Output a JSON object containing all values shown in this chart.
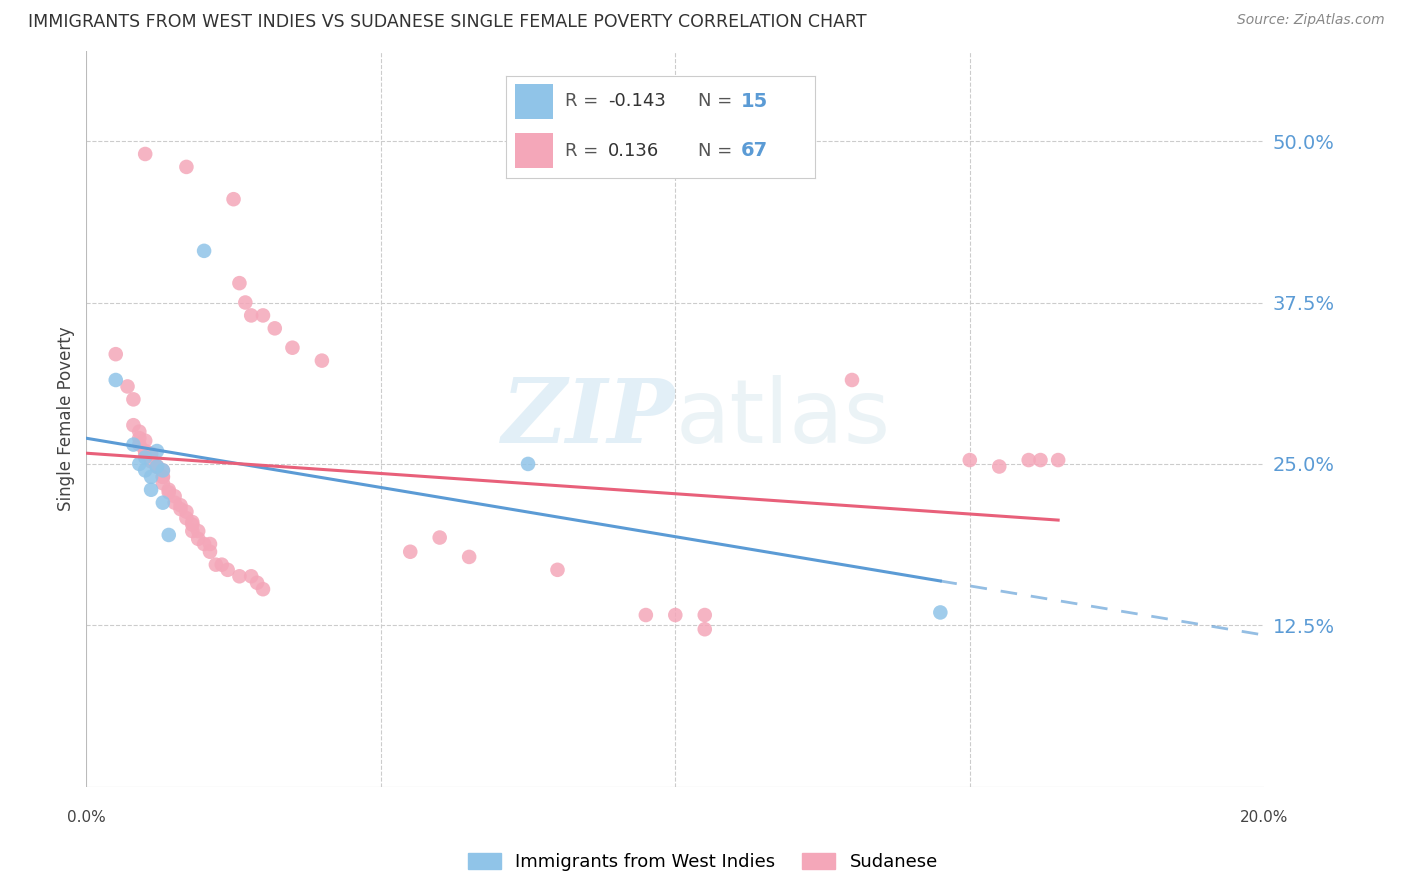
{
  "title": "IMMIGRANTS FROM WEST INDIES VS SUDANESE SINGLE FEMALE POVERTY CORRELATION CHART",
  "source": "Source: ZipAtlas.com",
  "ylabel": "Single Female Poverty",
  "ytick_labels": [
    "50.0%",
    "37.5%",
    "25.0%",
    "12.5%"
  ],
  "ytick_values": [
    0.5,
    0.375,
    0.25,
    0.125
  ],
  "xmin": 0.0,
  "xmax": 0.2,
  "ymin": 0.0,
  "ymax": 0.57,
  "legend": {
    "blue_R": "-0.143",
    "blue_N": "15",
    "pink_R": "0.136",
    "pink_N": "67"
  },
  "watermark_zip": "ZIP",
  "watermark_atlas": "atlas",
  "blue_color": "#90c4e8",
  "pink_color": "#f4a7b9",
  "blue_line_color": "#5b9bd5",
  "pink_line_color": "#e8607a",
  "blue_scatter": [
    [
      0.005,
      0.315
    ],
    [
      0.008,
      0.265
    ],
    [
      0.009,
      0.25
    ],
    [
      0.01,
      0.245
    ],
    [
      0.01,
      0.255
    ],
    [
      0.011,
      0.24
    ],
    [
      0.011,
      0.23
    ],
    [
      0.012,
      0.26
    ],
    [
      0.012,
      0.248
    ],
    [
      0.013,
      0.22
    ],
    [
      0.013,
      0.245
    ],
    [
      0.014,
      0.195
    ],
    [
      0.02,
      0.415
    ],
    [
      0.075,
      0.25
    ],
    [
      0.145,
      0.135
    ]
  ],
  "pink_scatter": [
    [
      0.01,
      0.49
    ],
    [
      0.017,
      0.48
    ],
    [
      0.025,
      0.455
    ],
    [
      0.026,
      0.39
    ],
    [
      0.027,
      0.375
    ],
    [
      0.028,
      0.365
    ],
    [
      0.03,
      0.365
    ],
    [
      0.032,
      0.355
    ],
    [
      0.035,
      0.34
    ],
    [
      0.04,
      0.33
    ],
    [
      0.005,
      0.335
    ],
    [
      0.007,
      0.31
    ],
    [
      0.008,
      0.3
    ],
    [
      0.008,
      0.28
    ],
    [
      0.009,
      0.275
    ],
    [
      0.009,
      0.27
    ],
    [
      0.009,
      0.265
    ],
    [
      0.01,
      0.268
    ],
    [
      0.01,
      0.26
    ],
    [
      0.01,
      0.258
    ],
    [
      0.011,
      0.258
    ],
    [
      0.011,
      0.258
    ],
    [
      0.011,
      0.252
    ],
    [
      0.012,
      0.248
    ],
    [
      0.012,
      0.248
    ],
    [
      0.012,
      0.248
    ],
    [
      0.013,
      0.245
    ],
    [
      0.013,
      0.24
    ],
    [
      0.013,
      0.24
    ],
    [
      0.013,
      0.235
    ],
    [
      0.014,
      0.23
    ],
    [
      0.014,
      0.228
    ],
    [
      0.015,
      0.225
    ],
    [
      0.015,
      0.22
    ],
    [
      0.016,
      0.218
    ],
    [
      0.016,
      0.215
    ],
    [
      0.017,
      0.213
    ],
    [
      0.017,
      0.208
    ],
    [
      0.018,
      0.205
    ],
    [
      0.018,
      0.203
    ],
    [
      0.018,
      0.198
    ],
    [
      0.019,
      0.198
    ],
    [
      0.019,
      0.192
    ],
    [
      0.02,
      0.188
    ],
    [
      0.021,
      0.188
    ],
    [
      0.021,
      0.182
    ],
    [
      0.022,
      0.172
    ],
    [
      0.023,
      0.172
    ],
    [
      0.024,
      0.168
    ],
    [
      0.026,
      0.163
    ],
    [
      0.028,
      0.163
    ],
    [
      0.029,
      0.158
    ],
    [
      0.03,
      0.153
    ],
    [
      0.055,
      0.182
    ],
    [
      0.06,
      0.193
    ],
    [
      0.065,
      0.178
    ],
    [
      0.08,
      0.168
    ],
    [
      0.095,
      0.133
    ],
    [
      0.1,
      0.133
    ],
    [
      0.105,
      0.133
    ],
    [
      0.105,
      0.122
    ],
    [
      0.13,
      0.315
    ],
    [
      0.155,
      0.248
    ],
    [
      0.16,
      0.253
    ],
    [
      0.162,
      0.253
    ],
    [
      0.165,
      0.253
    ],
    [
      0.15,
      0.253
    ]
  ]
}
